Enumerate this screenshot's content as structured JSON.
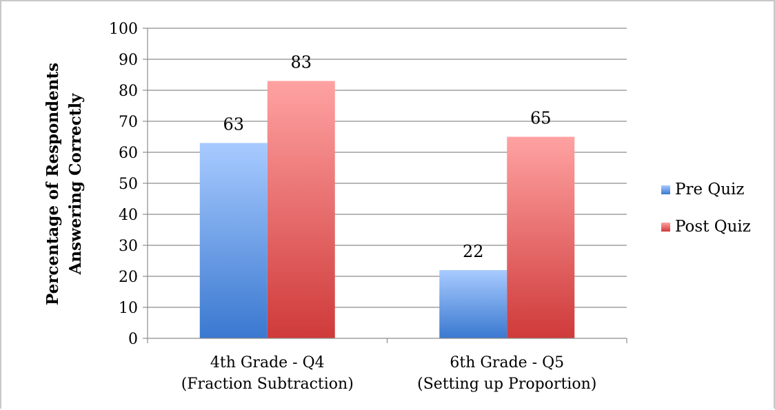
{
  "chart_data": {
    "type": "bar",
    "categories": [
      [
        "4th Grade - Q4",
        "(Fraction Subtraction)"
      ],
      [
        "6th Grade - Q5",
        "(Setting up Proportion)"
      ]
    ],
    "series": [
      {
        "name": "Pre Quiz",
        "values": [
          63,
          22
        ],
        "color": "#5b8fd8"
      },
      {
        "name": "Post Quiz",
        "values": [
          83,
          65
        ],
        "color": "#e06060"
      }
    ],
    "ylabel": [
      "Percentage of Respondents",
      "Answering Correctly"
    ],
    "xlabel": "",
    "ylim": [
      0,
      100
    ],
    "yticks": [
      0,
      10,
      20,
      30,
      40,
      50,
      60,
      70,
      80,
      90,
      100
    ],
    "grid": true,
    "legend": "right",
    "data_labels": true
  }
}
